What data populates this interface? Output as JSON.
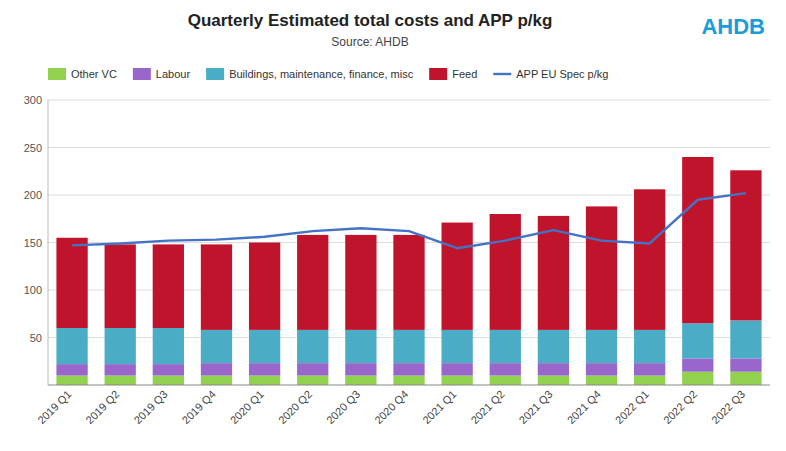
{
  "chart_data": {
    "type": "bar",
    "stacked": true,
    "title": "Quarterly Estimated total costs and APP p/kg",
    "subtitle": "Source: AHDB",
    "annotations": [
      "AHDB"
    ],
    "categories": [
      "2019 Q1",
      "2019 Q2",
      "2019 Q3",
      "2019 Q4",
      "2020 Q1",
      "2020 Q2",
      "2020 Q3",
      "2020 Q4",
      "2021 Q1",
      "2021 Q2",
      "2021 Q3",
      "2021 Q4",
      "2022 Q1",
      "2022 Q2",
      "2022 Q3"
    ],
    "series": [
      {
        "name": "Other VC",
        "color": "#92d050",
        "values": [
          10,
          10,
          10,
          10,
          10,
          10,
          10,
          10,
          10,
          10,
          10,
          10,
          10,
          14,
          14
        ]
      },
      {
        "name": "Labour",
        "color": "#9966cc",
        "values": [
          12,
          12,
          12,
          13,
          13,
          13,
          13,
          13,
          13,
          13,
          13,
          13,
          13,
          14,
          14
        ]
      },
      {
        "name": "Buildings, maintenance, finance, misc",
        "color": "#4bacc6",
        "values": [
          38,
          38,
          38,
          35,
          35,
          35,
          35,
          35,
          35,
          35,
          35,
          35,
          35,
          37,
          40
        ]
      },
      {
        "name": "Feed",
        "color": "#c0142d",
        "values": [
          95,
          88,
          88,
          90,
          92,
          100,
          100,
          100,
          113,
          122,
          120,
          130,
          148,
          175,
          158
        ]
      },
      {
        "name": "APP EU Spec p/kg",
        "type": "line",
        "color": "#4472c4",
        "values": [
          147,
          149,
          152,
          153,
          156,
          162,
          165,
          162,
          144,
          152,
          163,
          152,
          149,
          195,
          202
        ]
      }
    ],
    "ylim": [
      0,
      300
    ],
    "yticks": [
      50,
      100,
      150,
      200,
      250,
      300
    ],
    "grid": true,
    "legend": "top"
  }
}
